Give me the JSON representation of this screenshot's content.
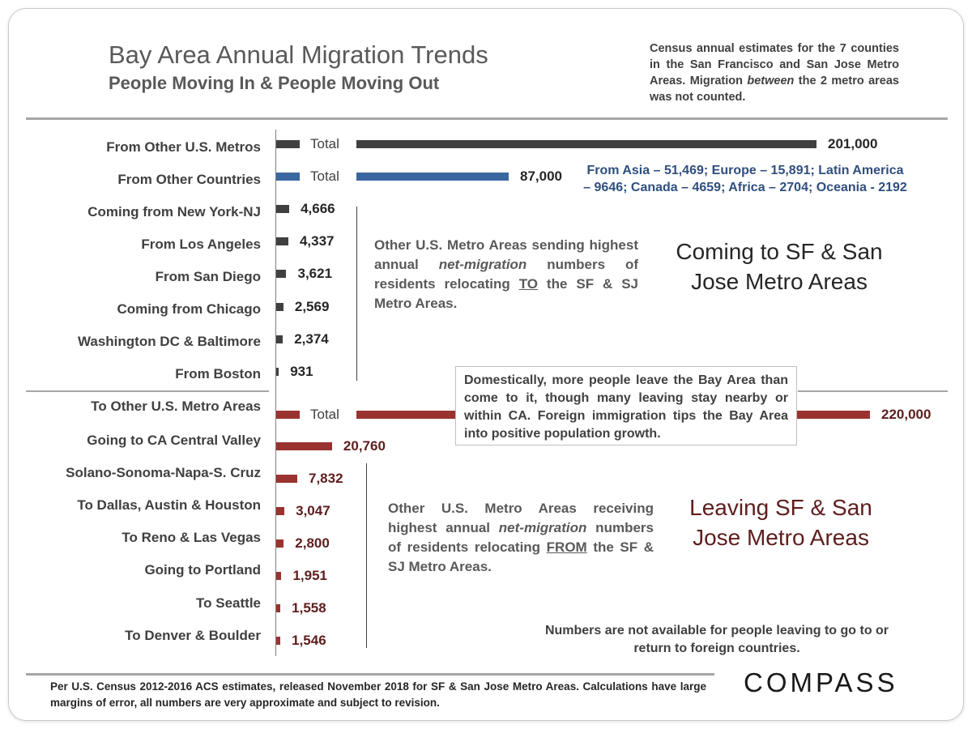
{
  "header": {
    "title": "Bay Area Annual Migration Trends",
    "subtitle": "People Moving In & People Moving Out",
    "note_pre": "Census annual estimates for the 7 counties in the San Francisco and San Jose Metro Areas. Migration ",
    "note_em": "between",
    "note_post": " the 2 metro areas was not counted."
  },
  "colors": {
    "incoming_total": "#404040",
    "foreign": "#3b67a0",
    "outgoing": "#9a3330",
    "outgoing_text": "#5e1d1d",
    "incoming_text": "#262626"
  },
  "chart_data": {
    "type": "bar",
    "orientation": "horizontal",
    "total_tag": "Total",
    "groups": [
      {
        "name": "Coming to SF & San Jose Metro Areas",
        "categories": [
          "From Other U.S. Metros",
          "From Other Countries",
          "Coming from New York-NJ",
          "From Los Angeles",
          "From San Diego",
          "Coming from Chicago",
          "Washington DC & Baltimore",
          "From Boston"
        ],
        "values": [
          201000,
          87000,
          4666,
          4337,
          3621,
          2569,
          2374,
          931
        ],
        "value_labels": [
          "201,000",
          "87,000",
          "4,666",
          "4,337",
          "3,621",
          "2,569",
          "2,374",
          "931"
        ],
        "total_flags": [
          true,
          true,
          false,
          false,
          false,
          false,
          false,
          false
        ]
      },
      {
        "name": "Leaving SF & San Jose Metro Areas",
        "categories": [
          "To Other U.S. Metro Areas",
          "Going to CA Central Valley",
          "Solano-Sonoma-Napa-S. Cruz",
          "To Dallas, Austin & Houston",
          "To Reno & Las Vegas",
          "Going to Portland",
          "To Seattle",
          "To Denver & Boulder"
        ],
        "values": [
          220000,
          20760,
          7832,
          3047,
          2800,
          1951,
          1558,
          1546
        ],
        "value_labels": [
          "220,000",
          "20,760",
          "7,832",
          "3,047",
          "2,800",
          "1,951",
          "1,558",
          "1,546"
        ],
        "total_flags": [
          true,
          false,
          false,
          false,
          false,
          false,
          false,
          false
        ]
      }
    ]
  },
  "annotations": {
    "foreign_breakdown": "From Asia – 51,469; Europe – 15,891; Latin America – 9646; Canada – 4659; Africa – 2704; Oceania - 2192",
    "coming_note_pre": "Other U.S. Metro Areas sending highest annual ",
    "coming_note_em": "net-migration",
    "coming_note_mid": " numbers of residents relocating ",
    "coming_note_u": "TO",
    "coming_note_post": " the SF & SJ Metro Areas.",
    "coming_big": "Coming to SF & San Jose Metro Areas",
    "callout": "Domestically, more people leave the Bay Area than come to it, though many leaving stay nearby or within CA. Foreign immigration tips the Bay Area into positive population growth.",
    "leaving_note_pre": "Other U.S. Metro Areas receiving highest annual ",
    "leaving_note_em": "net-migration",
    "leaving_note_mid": " numbers of residents relocating ",
    "leaving_note_u": "FROM",
    "leaving_note_post": " the SF & SJ Metro Areas.",
    "leaving_big": "Leaving SF & San Jose Metro Areas",
    "not_available": "Numbers are not available for people leaving to go to or return to foreign countries."
  },
  "footer": {
    "source": "Per U.S. Census 2012-2016 ACS estimates, released November 2018 for SF & San Jose Metro Areas. Calculations have large margins of error, all numbers are very approximate and subject to revision.",
    "logo": "COMPASS"
  }
}
